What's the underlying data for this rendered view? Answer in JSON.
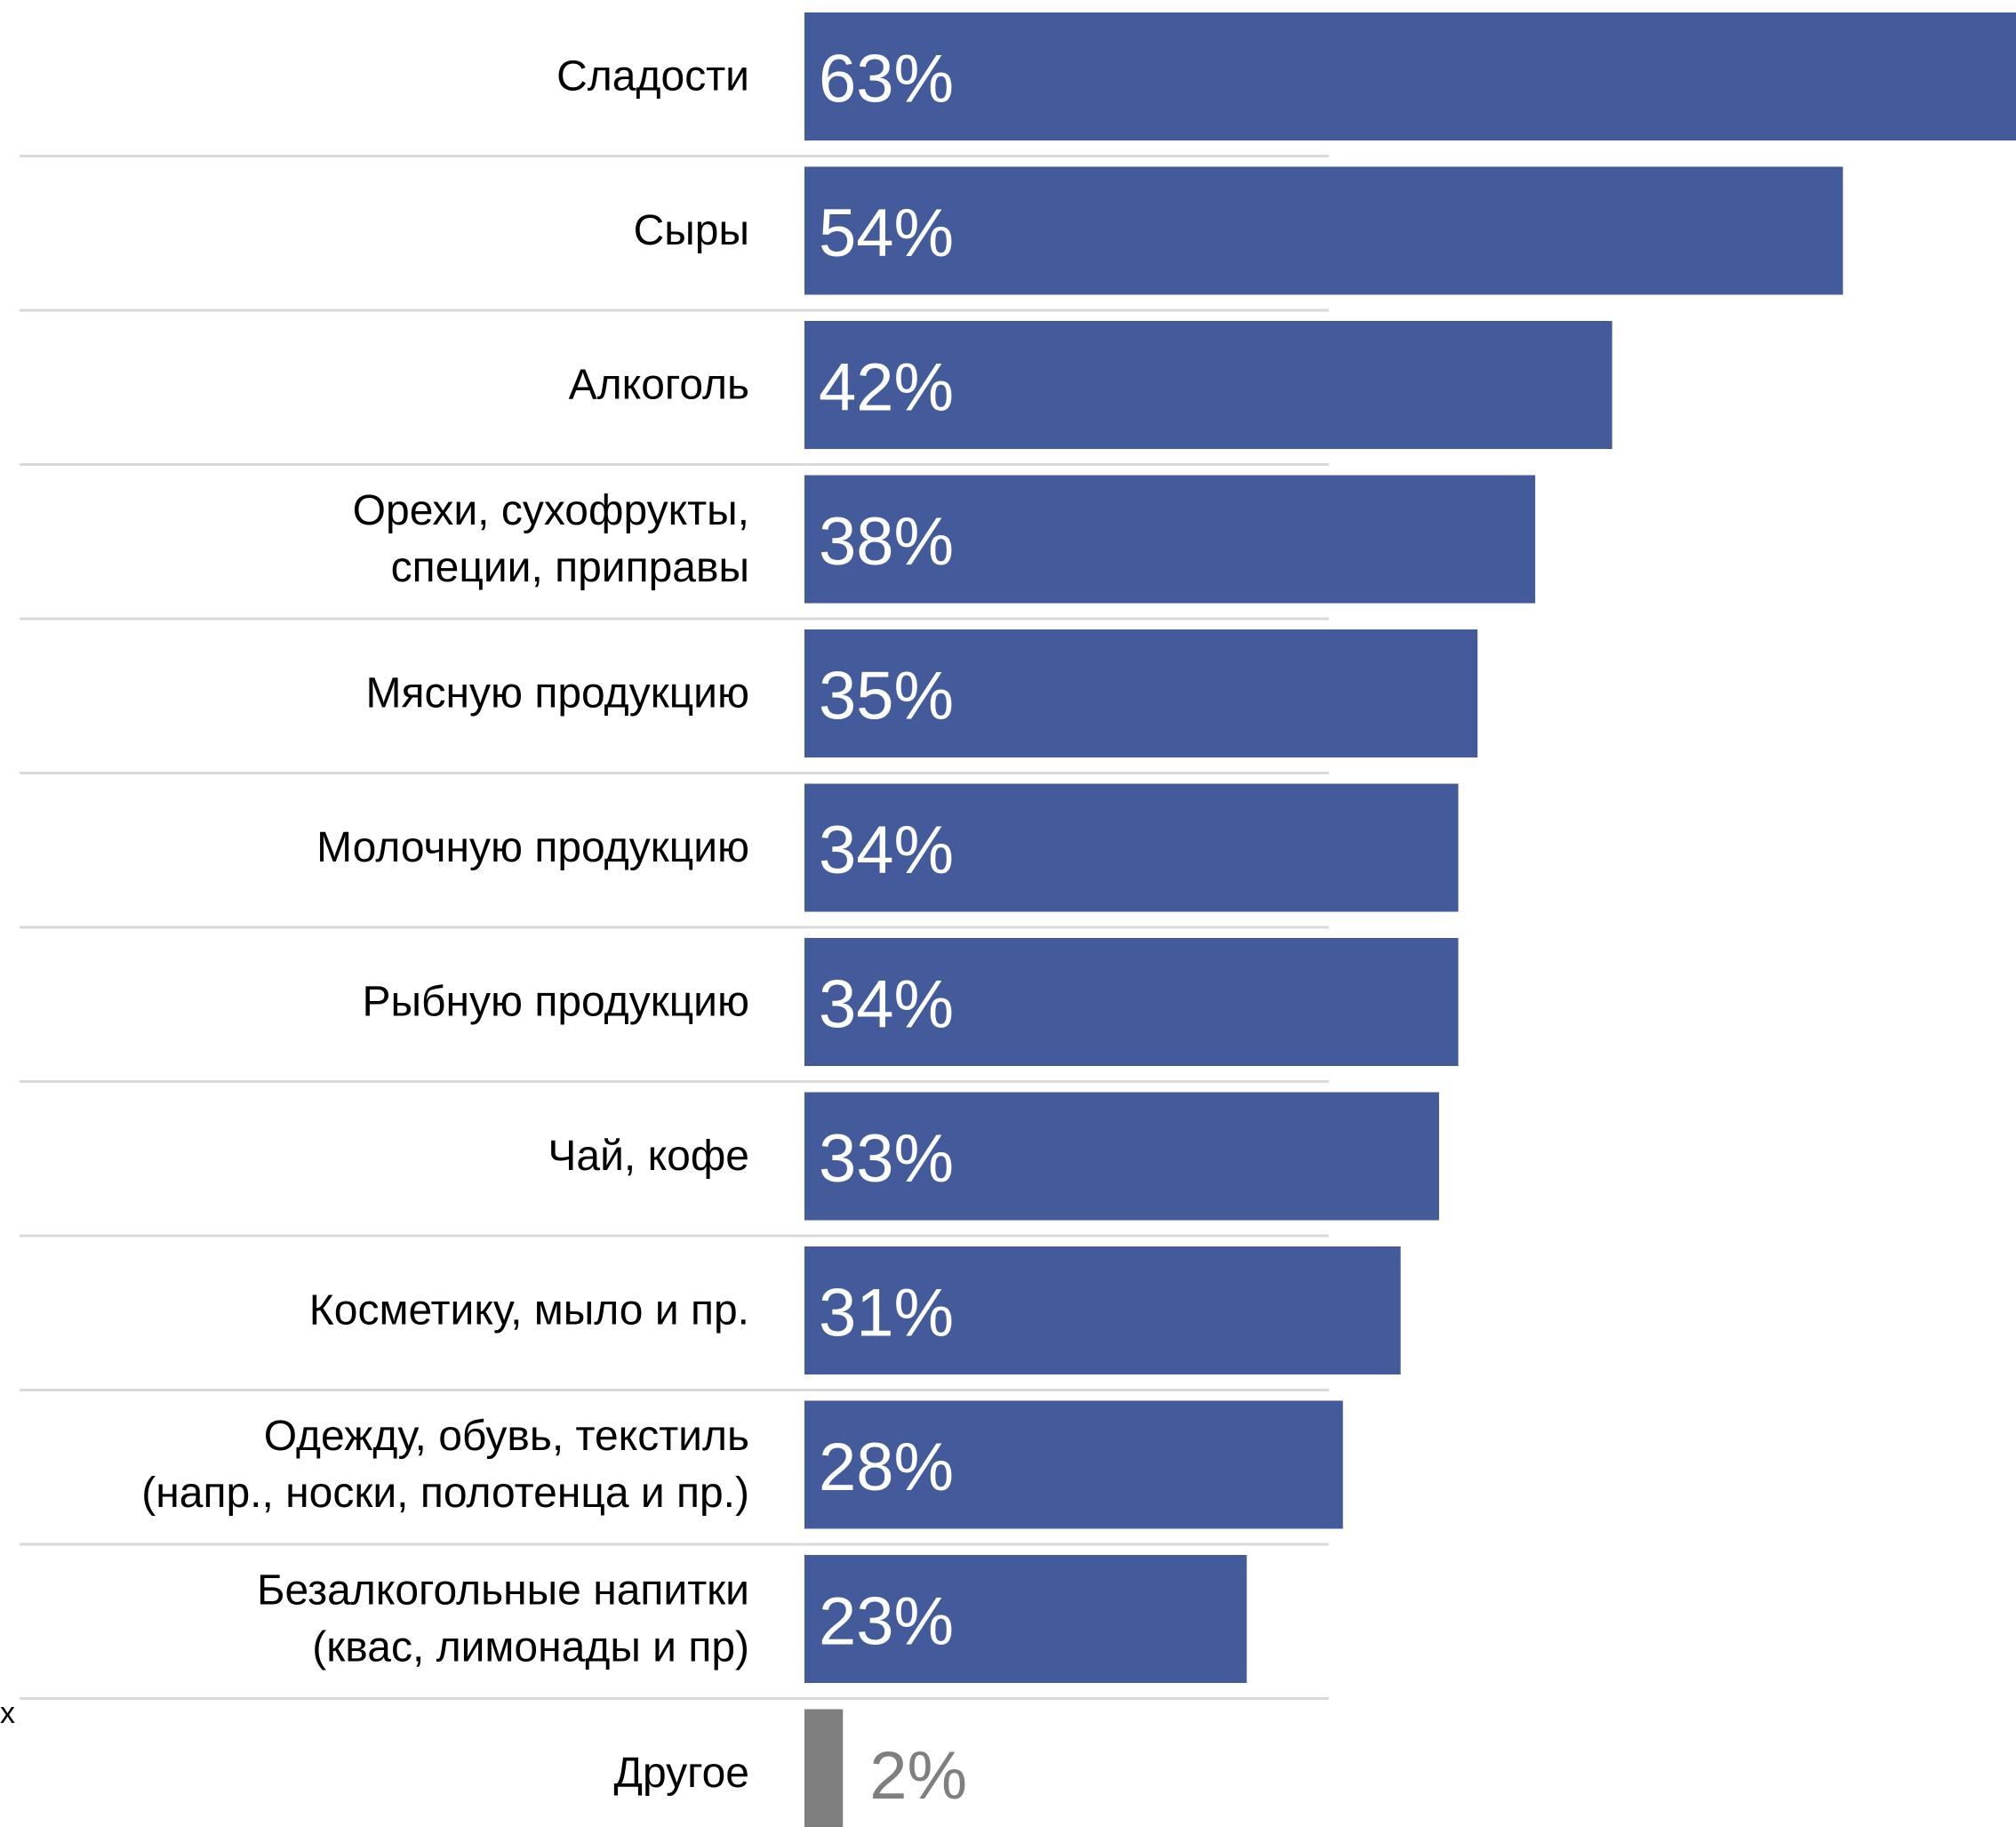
{
  "chart_data": {
    "type": "bar",
    "orientation": "horizontal",
    "title": "",
    "xlabel": "",
    "ylabel": "",
    "xlim": [
      0,
      63
    ],
    "grid": false,
    "legend": "none",
    "categories": [
      [
        "Сладости"
      ],
      [
        "Сыры"
      ],
      [
        "Алкоголь"
      ],
      [
        "Орехи, сухофрукты,",
        "специи, приправы"
      ],
      [
        "Мясную продукцию"
      ],
      [
        "Молочную продукцию"
      ],
      [
        "Рыбную продукцию"
      ],
      [
        "Чай, кофе"
      ],
      [
        "Косметику, мыло и пр."
      ],
      [
        "Одежду, обувь, текстиль",
        "(напр., носки, полотенца и пр.)"
      ],
      [
        "Безалкогольные напитки",
        "(квас, лимонады и пр)"
      ],
      [
        "Другое"
      ]
    ],
    "values": [
      63,
      54,
      42,
      38,
      35,
      34,
      34,
      33,
      31,
      28,
      23,
      2
    ],
    "data_labels": [
      "63%",
      "54%",
      "42%",
      "38%",
      "35%",
      "34%",
      "34%",
      "33%",
      "31%",
      "28%",
      "23%",
      "2%"
    ],
    "colors": {
      "main": "#435a9b",
      "other": "#7f7f7f",
      "separator": "#d9d9d9",
      "label_text": "#000000",
      "value_text_inside": "#ffffff",
      "value_text_other": "#7f7f7f"
    }
  },
  "stray_mark": "x"
}
